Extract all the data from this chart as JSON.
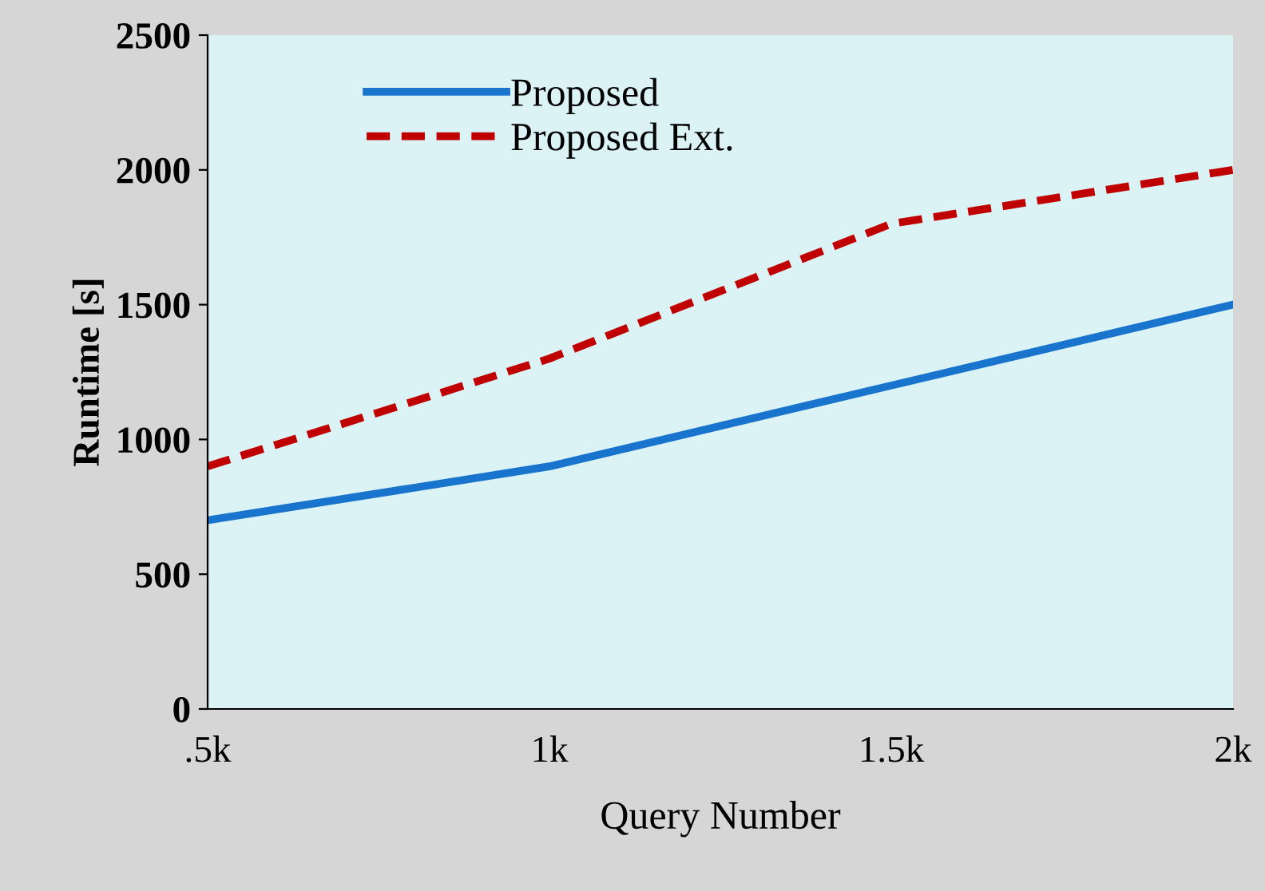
{
  "chart_data": {
    "type": "line",
    "xlabel": "Query Number",
    "ylabel": "Runtime [s]",
    "categories": [
      ".5k",
      "1k",
      "1.5k",
      "2k"
    ],
    "series": [
      {
        "name": "Proposed",
        "color": "#1874cd",
        "values": [
          700,
          900,
          1200,
          1500
        ],
        "line_style": "solid"
      },
      {
        "name": "Proposed Ext.",
        "color": "#c00000",
        "values": [
          900,
          1300,
          1800,
          2000
        ],
        "line_style": "dashed"
      }
    ],
    "ylim": [
      0,
      2500
    ],
    "yticks": [
      0,
      500,
      1000,
      1500,
      2000,
      2500
    ],
    "grid": false,
    "legend": "top left",
    "marker": "none"
  }
}
